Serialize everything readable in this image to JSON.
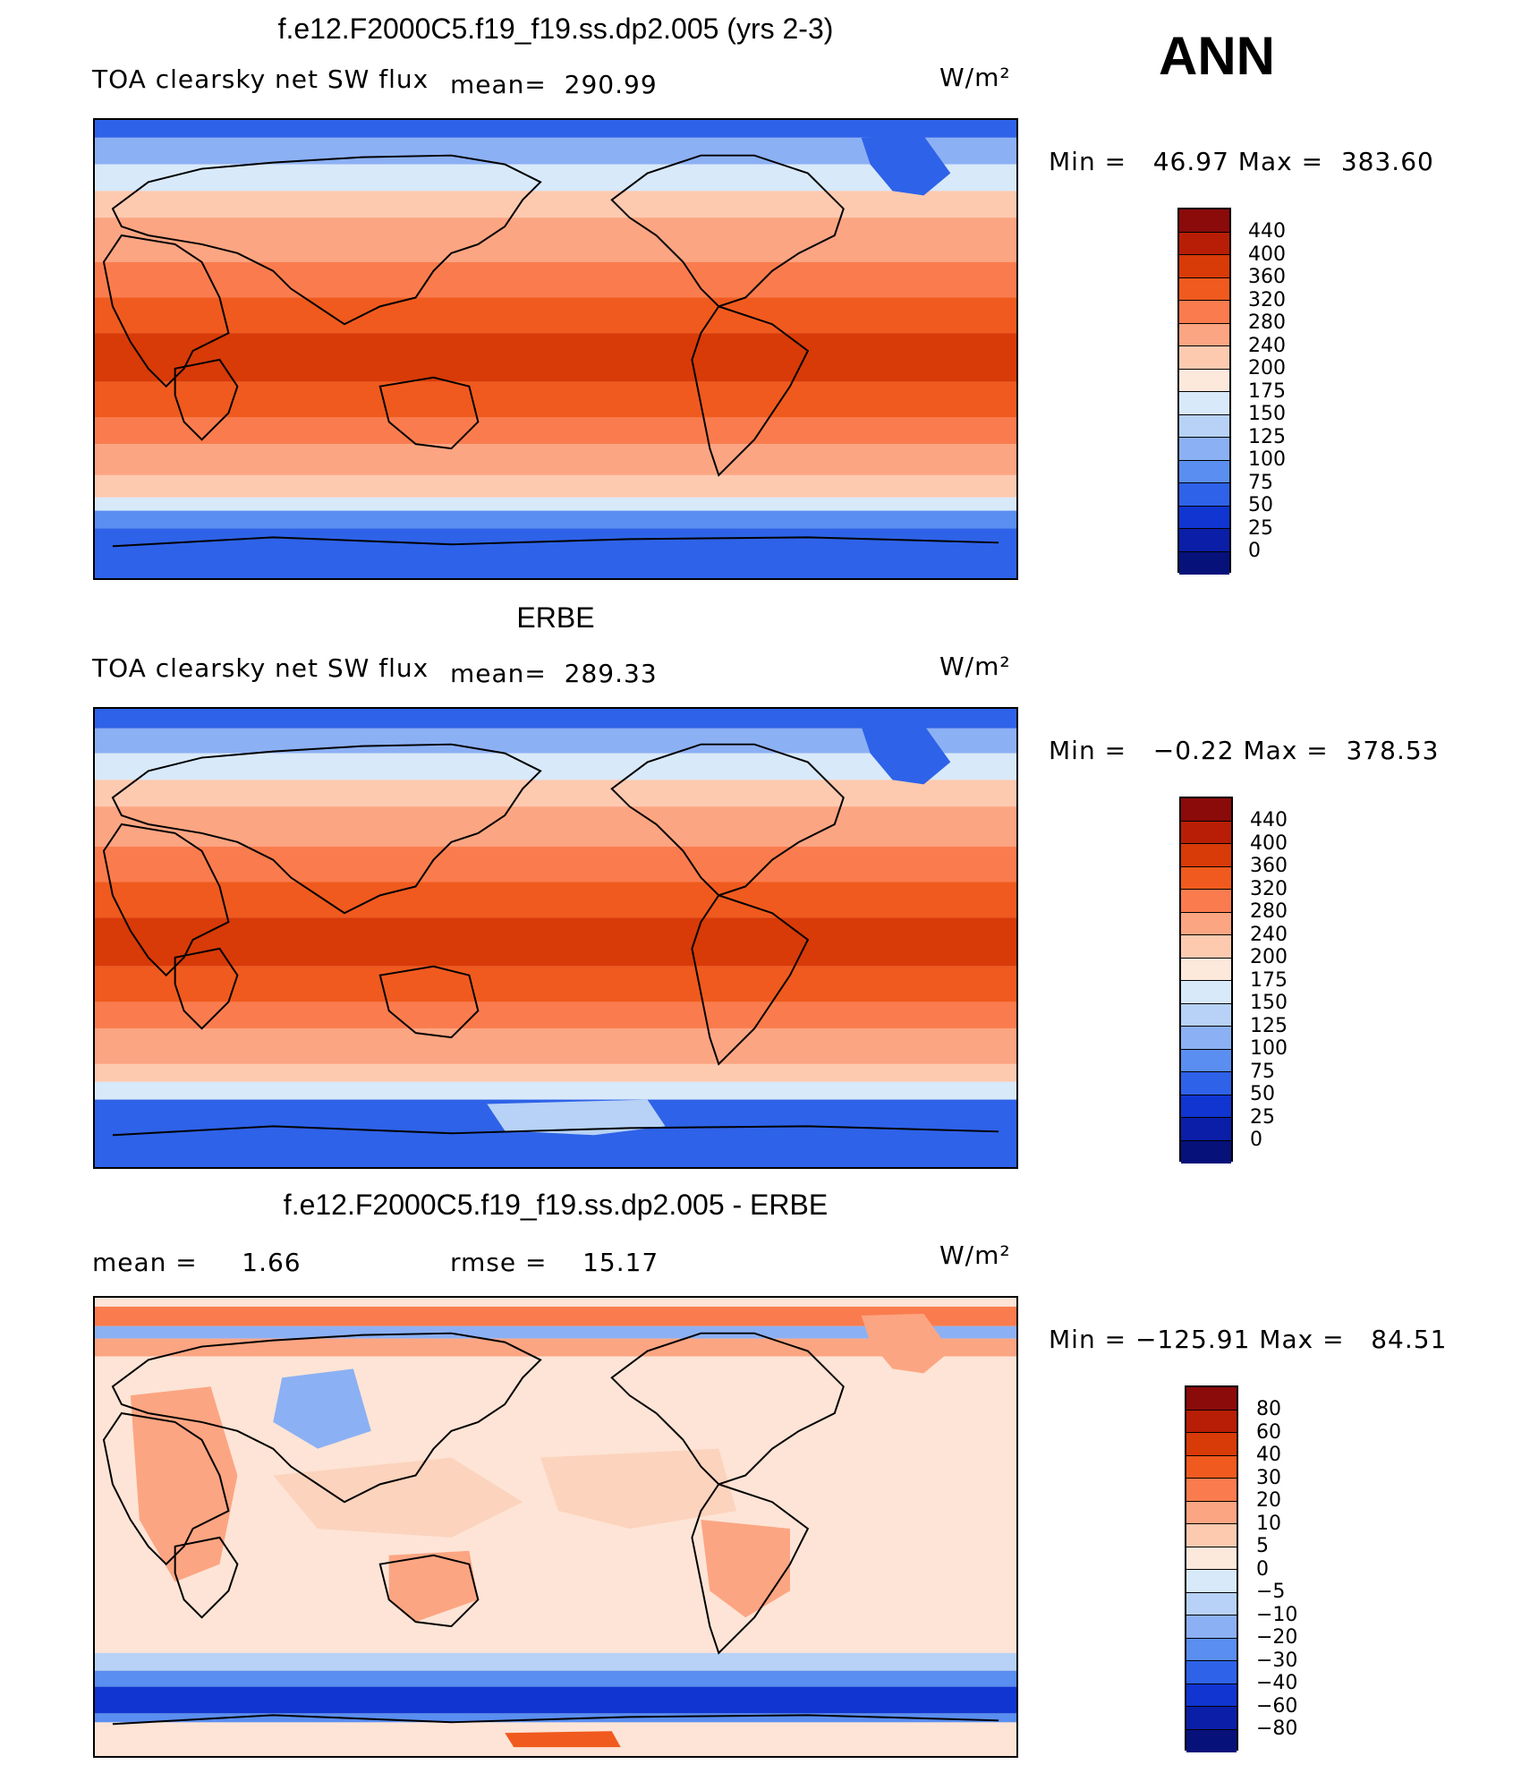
{
  "season": "ANN",
  "panels": [
    {
      "title": "f.e12.F2000C5.f19_f19.ss.dp2.005 (yrs 2-3)",
      "left_label": "TOA clearsky net SW flux",
      "mid_label": "mean=  290.99",
      "units": "W/m²",
      "minmax": "Min =   46.97 Max =  383.60",
      "colorbar": {
        "ticks": [
          "440",
          "400",
          "360",
          "320",
          "280",
          "240",
          "200",
          "175",
          "150",
          "125",
          "100",
          "75",
          "50",
          "25",
          "0"
        ],
        "colors": [
          "#8b0a0a",
          "#b81e05",
          "#d83a08",
          "#f05a1e",
          "#fa7c4e",
          "#fca582",
          "#fdcab0",
          "#fde8dc",
          "#d8e9fa",
          "#b7d2f6",
          "#8cb0f4",
          "#5a8ef0",
          "#2e62e8",
          "#1035d0",
          "#0a1ea8",
          "#06117a"
        ]
      },
      "map_type": "absolute"
    },
    {
      "title": "ERBE",
      "left_label": "TOA clearsky net SW flux",
      "mid_label": "mean=  289.33",
      "units": "W/m²",
      "minmax": "Min =   −0.22 Max =  378.53",
      "colorbar": {
        "ticks": [
          "440",
          "400",
          "360",
          "320",
          "280",
          "240",
          "200",
          "175",
          "150",
          "125",
          "100",
          "75",
          "50",
          "25",
          "0"
        ],
        "colors": [
          "#8b0a0a",
          "#b81e05",
          "#d83a08",
          "#f05a1e",
          "#fa7c4e",
          "#fca582",
          "#fdcab0",
          "#fde8dc",
          "#d8e9fa",
          "#b7d2f6",
          "#8cb0f4",
          "#5a8ef0",
          "#2e62e8",
          "#1035d0",
          "#0a1ea8",
          "#06117a"
        ]
      },
      "map_type": "absolute"
    },
    {
      "title": "f.e12.F2000C5.f19_f19.ss.dp2.005 - ERBE",
      "left_label": "mean =     1.66",
      "mid_label": "rmse =    15.17",
      "units": "W/m²",
      "minmax": "Min = −125.91 Max =   84.51",
      "colorbar": {
        "ticks": [
          "80",
          "60",
          "40",
          "30",
          "20",
          "10",
          "5",
          "0",
          "−5",
          "−10",
          "−20",
          "−30",
          "−40",
          "−60",
          "−80"
        ],
        "colors": [
          "#8b0a0a",
          "#b81e05",
          "#d83a08",
          "#f05a1e",
          "#fa7c4e",
          "#fca582",
          "#fdcab0",
          "#fde8dc",
          "#d8e9fa",
          "#b7d2f6",
          "#8cb0f4",
          "#5a8ef0",
          "#2e62e8",
          "#1035d0",
          "#0a1ea8",
          "#06117a"
        ]
      },
      "map_type": "difference"
    }
  ]
}
